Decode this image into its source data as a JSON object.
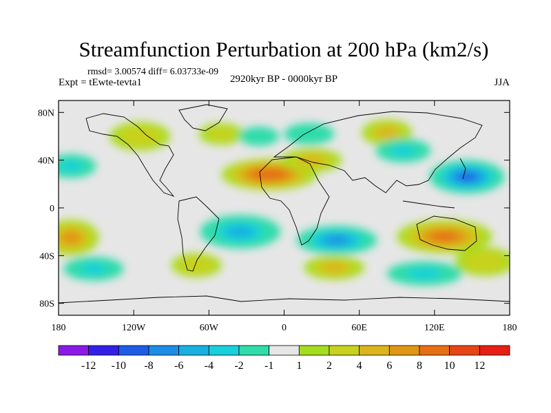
{
  "chart_data": {
    "type": "heatmap",
    "title": "Streamfunction Perturbation at 200 hPa (km2/s)",
    "stats": "rmsd= 3.00574 diff= 6.03733e-09",
    "subtitle_left": "Expt = tEwte-tevta1",
    "subtitle_center": "2920kyr BP - 0000kyr BP",
    "subtitle_right": "JJA",
    "x_range": [
      -180,
      180
    ],
    "y_range": [
      -90,
      90
    ],
    "x_ticks": [
      {
        "value": -180,
        "label": "180"
      },
      {
        "value": -120,
        "label": "120W"
      },
      {
        "value": -60,
        "label": "60W"
      },
      {
        "value": 0,
        "label": "0"
      },
      {
        "value": 60,
        "label": "60E"
      },
      {
        "value": 120,
        "label": "120E"
      },
      {
        "value": 180,
        "label": "180"
      }
    ],
    "y_ticks": [
      {
        "value": 80,
        "label": "80N"
      },
      {
        "value": 40,
        "label": "40N"
      },
      {
        "value": 0,
        "label": "0"
      },
      {
        "value": -40,
        "label": "40S"
      },
      {
        "value": -80,
        "label": "80S"
      }
    ],
    "colorbar": {
      "colors": [
        "#8b1ae6",
        "#3320e6",
        "#1f5ce6",
        "#1d8ee6",
        "#19b0e0",
        "#18d0dc",
        "#2fdcaa",
        "#e6e6e6",
        "#a6dc1e",
        "#c8d21e",
        "#dcb41e",
        "#e09614",
        "#e66e14",
        "#e64614",
        "#e61e14"
      ],
      "labels": [
        "-12",
        "-10",
        "-8",
        "-6",
        "-4",
        "-2",
        "-1",
        "1",
        "2",
        "4",
        "6",
        "8",
        "10",
        "12"
      ]
    },
    "anomalies": [
      {
        "lon": -12,
        "lat": 28,
        "rx": 38,
        "ry": 13,
        "value": 9
      },
      {
        "lon": 22,
        "lat": 40,
        "rx": 24,
        "ry": 10,
        "value": 4
      },
      {
        "lon": 82,
        "lat": 63,
        "rx": 20,
        "ry": 11,
        "value": 4
      },
      {
        "lon": -35,
        "lat": -20,
        "rx": 32,
        "ry": 14,
        "value": -6
      },
      {
        "lon": 42,
        "lat": -27,
        "rx": 32,
        "ry": 12,
        "value": -7
      },
      {
        "lon": 146,
        "lat": 26,
        "rx": 30,
        "ry": 14,
        "value": -10
      },
      {
        "lon": 95,
        "lat": 48,
        "rx": 22,
        "ry": 10,
        "value": -3
      },
      {
        "lon": 128,
        "lat": -24,
        "rx": 38,
        "ry": 14,
        "value": 8
      },
      {
        "lon": -170,
        "lat": -25,
        "rx": 22,
        "ry": 15,
        "value": 6
      },
      {
        "lon": -152,
        "lat": -51,
        "rx": 24,
        "ry": 10,
        "value": -4
      },
      {
        "lon": -70,
        "lat": -48,
        "rx": 20,
        "ry": 10,
        "value": 3
      },
      {
        "lon": 40,
        "lat": -50,
        "rx": 24,
        "ry": 10,
        "value": 4
      },
      {
        "lon": 112,
        "lat": -55,
        "rx": 30,
        "ry": 10,
        "value": -4
      },
      {
        "lon": -170,
        "lat": 35,
        "rx": 20,
        "ry": 10,
        "value": -4
      },
      {
        "lon": -115,
        "lat": 60,
        "rx": 24,
        "ry": 12,
        "value": 3
      },
      {
        "lon": -50,
        "lat": 62,
        "rx": 18,
        "ry": 9,
        "value": 2
      },
      {
        "lon": -20,
        "lat": 60,
        "rx": 16,
        "ry": 8,
        "value": -2
      },
      {
        "lon": 20,
        "lat": 62,
        "rx": 20,
        "ry": 9,
        "value": -2
      },
      {
        "lon": 160,
        "lat": -45,
        "rx": 24,
        "ry": 12,
        "value": 3
      }
    ]
  }
}
